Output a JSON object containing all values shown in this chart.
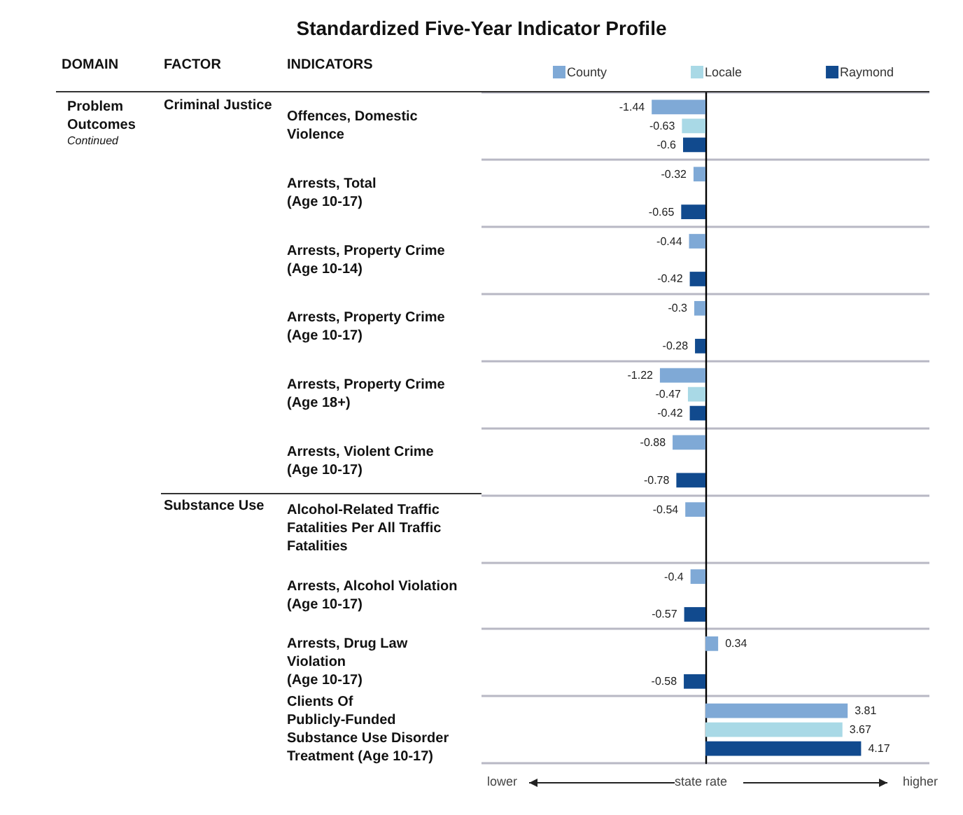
{
  "chart_data": {
    "type": "bar",
    "orientation": "horizontal",
    "title": "Standardized Five-Year Indicator Profile",
    "ylabel": "INDICATORS",
    "xlabel": "state rate",
    "categories": [
      "Offences, Domestic Violence",
      "Arrests, Total\n(Age 10-17)",
      "Arrests, Property Crime\n(Age 10-14)",
      "Arrests, Property Crime\n(Age 10-17)",
      "Arrests, Property Crime\n(Age 18+)",
      "Arrests, Violent Crime\n(Age 10-17)",
      "Alcohol-Related Traffic Fatalities Per All Traffic Fatalities",
      "Arrests, Alcohol Violation\n(Age 10-17)",
      "Arrests, Drug Law Violation\n(Age 10-17)",
      "Clients Of Publicly-Funded Substance Use Disorder Treatment (Age 10-17)"
    ],
    "series": [
      {
        "name": "County",
        "color": "#7fa9d6",
        "values": [
          -1.44,
          -0.32,
          -0.44,
          -0.3,
          -1.22,
          -0.88,
          -0.54,
          -0.4,
          0.34,
          3.81
        ]
      },
      {
        "name": "Locale",
        "color": "#a9d9e6",
        "values": [
          -0.63,
          null,
          null,
          null,
          -0.47,
          null,
          null,
          null,
          null,
          3.67
        ]
      },
      {
        "name": "Raymond",
        "color": "#114a8e",
        "values": [
          -0.6,
          -0.65,
          -0.42,
          -0.28,
          -0.42,
          -0.78,
          null,
          -0.57,
          -0.58,
          4.17
        ]
      }
    ],
    "xlim": [
      -6,
      6
    ],
    "data_labels": true,
    "legend": "top",
    "grid": "y",
    "tick_labels": "y",
    "annotations": [
      "DOMAIN",
      "FACTOR",
      "Problem Outcomes",
      "Continued",
      "Criminal Justice",
      "Substance Use",
      "lower",
      "higher"
    ]
  }
}
